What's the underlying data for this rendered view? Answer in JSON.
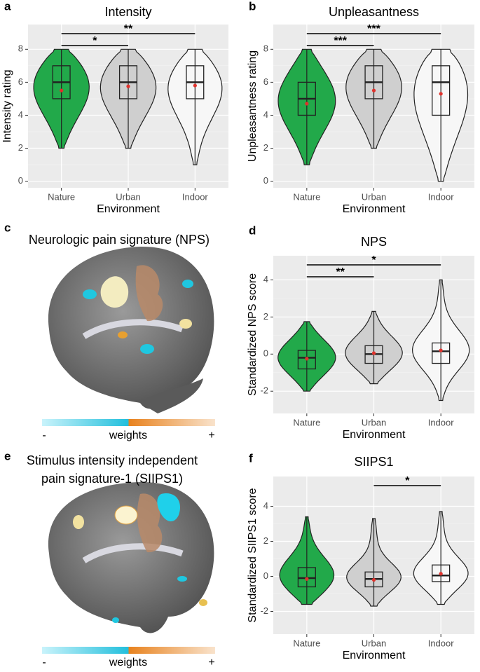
{
  "chart_data": [
    {
      "type": "violin",
      "panel": "a",
      "title": "Intensity",
      "x_label": "Environment",
      "y_label": "Intensity rating",
      "categories": [
        "Nature",
        "Urban",
        "Indoor"
      ],
      "colors": [
        "#22a94a",
        "#cfcfcf",
        "#f7f7f7"
      ],
      "min": [
        2,
        2,
        1
      ],
      "q1": [
        5,
        5,
        5
      ],
      "median": [
        6,
        6,
        6
      ],
      "q3": [
        7,
        7,
        7
      ],
      "max": [
        8,
        8,
        8
      ],
      "mean": [
        5.5,
        5.75,
        5.8
      ],
      "ylim": [
        -0.4,
        9.5
      ],
      "yticks": [
        0,
        2,
        4,
        6,
        8
      ],
      "annotations": [
        {
          "from": "Nature",
          "to": "Urban",
          "label": "*"
        },
        {
          "from": "Nature",
          "to": "Indoor",
          "label": "**"
        }
      ]
    },
    {
      "type": "violin",
      "panel": "b",
      "title": "Unpleasantness",
      "x_label": "Environment",
      "y_label": "Unpleasantness rating",
      "categories": [
        "Nature",
        "Urban",
        "Indoor"
      ],
      "colors": [
        "#22a94a",
        "#cfcfcf",
        "#f7f7f7"
      ],
      "min": [
        1,
        2,
        0
      ],
      "q1": [
        4,
        5,
        4
      ],
      "median": [
        5,
        6,
        6
      ],
      "q3": [
        6,
        7,
        7
      ],
      "max": [
        8,
        8,
        8
      ],
      "mean": [
        4.7,
        5.5,
        5.3
      ],
      "ylim": [
        -0.4,
        9.5
      ],
      "yticks": [
        0,
        2,
        4,
        6,
        8
      ],
      "annotations": [
        {
          "from": "Nature",
          "to": "Urban",
          "label": "***"
        },
        {
          "from": "Nature",
          "to": "Indoor",
          "label": "***"
        }
      ]
    },
    {
      "type": "violin",
      "panel": "d",
      "title": "NPS",
      "x_label": "Environment",
      "y_label": "Standardized NPS score",
      "categories": [
        "Nature",
        "Urban",
        "Indoor"
      ],
      "colors": [
        "#22a94a",
        "#cfcfcf",
        "#f7f7f7"
      ],
      "min": [
        -2.0,
        -1.6,
        -2.5
      ],
      "q1": [
        -0.8,
        -0.5,
        -0.5
      ],
      "median": [
        -0.2,
        0.0,
        0.15
      ],
      "q3": [
        0.2,
        0.45,
        0.6
      ],
      "max": [
        1.75,
        2.3,
        4.0
      ],
      "mean": [
        -0.25,
        0.05,
        0.2
      ],
      "ylim": [
        -3.2,
        5.3
      ],
      "yticks": [
        -2,
        0,
        2,
        4
      ],
      "annotations": [
        {
          "from": "Nature",
          "to": "Urban",
          "label": "**"
        },
        {
          "from": "Nature",
          "to": "Indoor",
          "label": "*"
        }
      ]
    },
    {
      "type": "violin",
      "panel": "f",
      "title": "SIIPS1",
      "x_label": "Environment",
      "y_label": "Standardized SIIPS1 score",
      "categories": [
        "Nature",
        "Urban",
        "Indoor"
      ],
      "colors": [
        "#22a94a",
        "#cfcfcf",
        "#f7f7f7"
      ],
      "min": [
        -1.6,
        -1.7,
        -1.6
      ],
      "q1": [
        -0.6,
        -0.6,
        -0.3
      ],
      "median": [
        -0.1,
        -0.15,
        0.05
      ],
      "q3": [
        0.5,
        0.25,
        0.65
      ],
      "max": [
        3.4,
        3.3,
        3.7
      ],
      "mean": [
        -0.15,
        -0.2,
        0.15
      ],
      "ylim": [
        -3.3,
        5.7
      ],
      "yticks": [
        -2,
        0,
        2,
        4
      ],
      "annotations": [
        {
          "from": "Urban",
          "to": "Indoor",
          "label": "*"
        }
      ]
    }
  ],
  "brain_panels": [
    {
      "panel": "c",
      "title": [
        "Neurologic pain signature (NPS)"
      ],
      "colorbar": {
        "low": "-",
        "label": "weights",
        "high": "+"
      }
    },
    {
      "panel": "e",
      "title": [
        "Stimulus intensity independent",
        "pain signature-1 (SIIPS1)"
      ],
      "colorbar": {
        "low": "-",
        "label": "weights",
        "high": "+"
      }
    }
  ]
}
